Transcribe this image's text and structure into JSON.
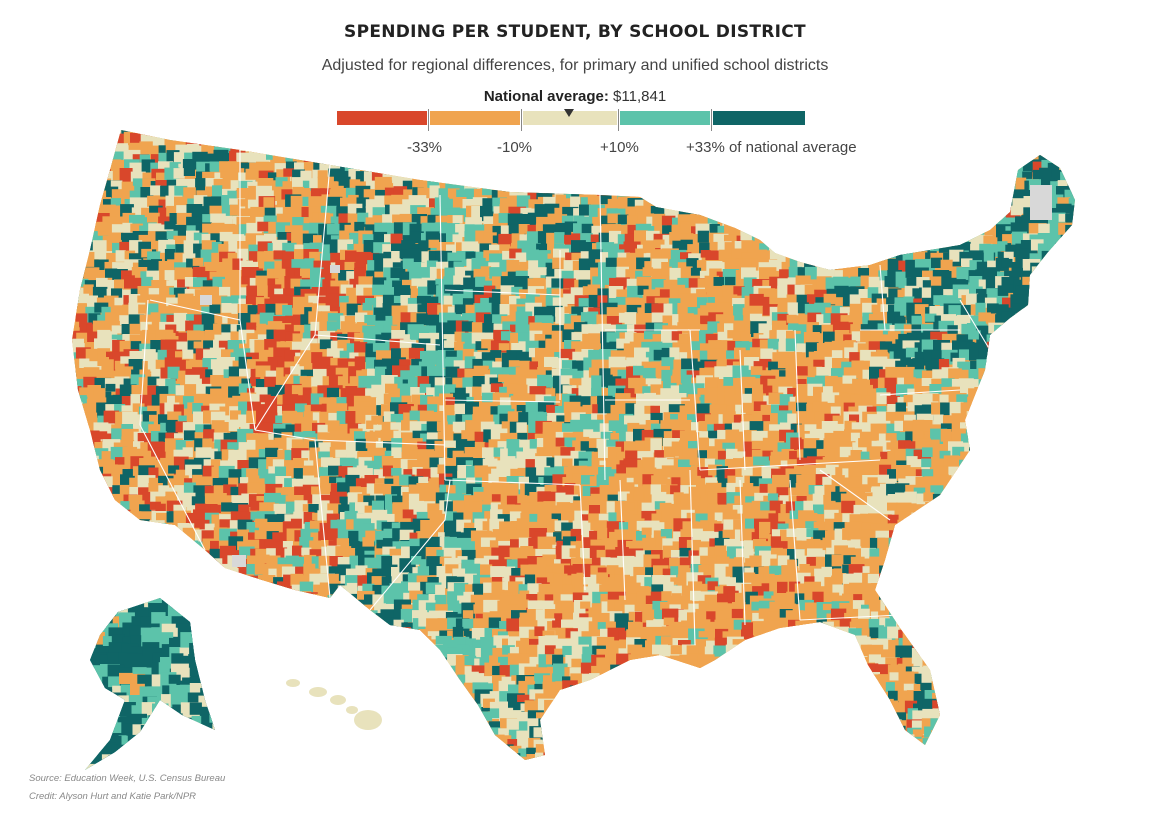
{
  "title": "SPENDING PER STUDENT, BY SCHOOL DISTRICT",
  "subtitle": "Adjusted for regional differences, for primary and unified school districts",
  "national_average": {
    "label": "National average:",
    "value": "$11,841"
  },
  "legend": {
    "bins": [
      {
        "color": "#d9472b",
        "range": "below -33%"
      },
      {
        "color": "#f0a44f",
        "range": "-33% to -10%"
      },
      {
        "color": "#e8e2bc",
        "range": "-10% to +10%"
      },
      {
        "color": "#5cc3aa",
        "range": "+10% to +33%"
      },
      {
        "color": "#0f6566",
        "range": "above +33%"
      }
    ],
    "labels": [
      "-33%",
      "-10%",
      "+10%",
      "+33% of national average"
    ]
  },
  "colors": {
    "nodata": "#d8d8d8",
    "state_border": "#ffffff"
  },
  "source": "Source: Education Week, U.S. Census Bureau",
  "credit": "Credit: Alyson Hurt and Katie Park/NPR"
}
